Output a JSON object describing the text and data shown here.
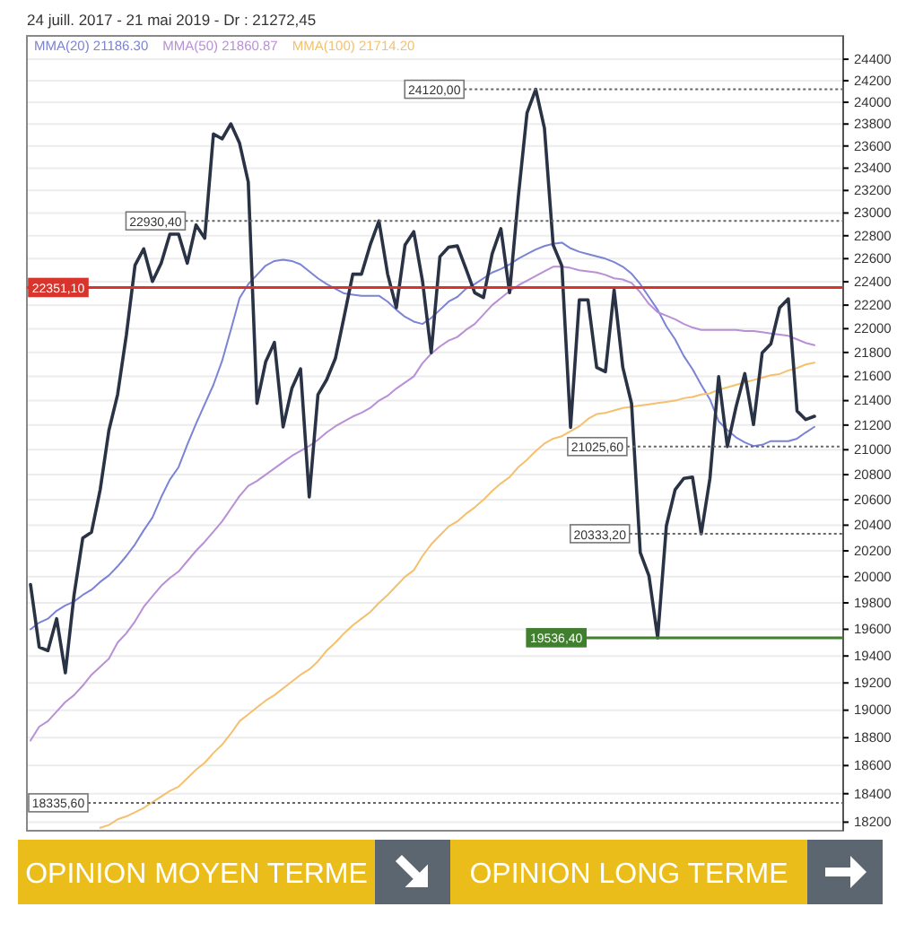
{
  "chart_data": {
    "type": "line",
    "title": "24 juill. 2017 - 21 mai 2019 - Dr : 21272,45",
    "categories": [
      null,
      null,
      null,
      null,
      null,
      null,
      null,
      null,
      null,
      null,
      null,
      null,
      null,
      null,
      null,
      null,
      null,
      null,
      null,
      null,
      null,
      null,
      null,
      null,
      null,
      null,
      null,
      null,
      null,
      null,
      null,
      null,
      null,
      null,
      null,
      null,
      null,
      null,
      null,
      null,
      null,
      null,
      null,
      null,
      null,
      null,
      null,
      null,
      null,
      null,
      null,
      null,
      null,
      null,
      null,
      null,
      null,
      null,
      null,
      null,
      null,
      null,
      null,
      null,
      null,
      null,
      null,
      null,
      null,
      null,
      null,
      null,
      null,
      null,
      null,
      null,
      null,
      null,
      null,
      null,
      null,
      null,
      null,
      null,
      null,
      null,
      null,
      null,
      null,
      null,
      null
    ],
    "ylim": [
      18140,
      24620
    ],
    "yticks": [
      18200,
      18400,
      18600,
      18800,
      19000,
      19200,
      19400,
      19600,
      19800,
      20000,
      20200,
      20400,
      20600,
      20800,
      21000,
      21200,
      21400,
      21600,
      21800,
      22000,
      22200,
      22400,
      22600,
      22800,
      23000,
      23200,
      23400,
      23600,
      23800,
      24000,
      24200,
      24400
    ],
    "log": "y",
    "grid": "y",
    "tick_labels": "y",
    "series": [
      {
        "color": "#2a3346",
        "values": [
          19940,
          19466,
          19440,
          19680,
          19275,
          19860,
          20300,
          20345,
          20680,
          21157,
          21450,
          21944,
          22543,
          22685,
          22403,
          22560,
          22814,
          22814,
          22560,
          22894,
          22778,
          23709,
          23665,
          23802,
          23626,
          23276,
          21377,
          21723,
          21884,
          21185,
          21500,
          21663,
          20623,
          21450,
          21573,
          21750,
          22101,
          22466,
          22466,
          22720,
          22930,
          22466,
          22178,
          22720,
          22836,
          22408,
          21798,
          22617,
          22700,
          22711,
          22510,
          22306,
          22265,
          22643,
          22862,
          22306,
          23143,
          23901,
          24120,
          23763,
          22720,
          22537,
          21181,
          22245,
          22245,
          21674,
          21639,
          22330,
          21674,
          21377,
          20187,
          20006,
          19536,
          20396,
          20680,
          20770,
          20780,
          20333,
          20770,
          21598,
          21026,
          21350,
          21624,
          21204,
          21798,
          21873,
          22178,
          22254,
          21315,
          21245,
          21272
        ]
      },
      {
        "name": "MMA(20) 21186.30",
        "color": "#7b83d6",
        "values": [
          19600,
          19650,
          19680,
          19740,
          19780,
          19810,
          19860,
          19900,
          19960,
          20010,
          20080,
          20160,
          20250,
          20360,
          20460,
          20620,
          20760,
          20860,
          21041,
          21210,
          21370,
          21530,
          21730,
          21990,
          22260,
          22380,
          22460,
          22540,
          22580,
          22590,
          22580,
          22550,
          22490,
          22430,
          22380,
          22340,
          22300,
          22290,
          22280,
          22280,
          22280,
          22230,
          22160,
          22100,
          22060,
          22040,
          22090,
          22160,
          22230,
          22270,
          22340,
          22380,
          22430,
          22480,
          22510,
          22550,
          22600,
          22640,
          22680,
          22710,
          22730,
          22740,
          22690,
          22660,
          22640,
          22620,
          22600,
          22570,
          22530,
          22470,
          22380,
          22270,
          22160,
          22020,
          21910,
          21770,
          21660,
          21530,
          21410,
          21230,
          21160,
          21100,
          21060,
          21030,
          21040,
          21070,
          21070,
          21070,
          21090,
          21140,
          21186
        ]
      },
      {
        "name": "MMA(50) 21860.87",
        "color": "#b98fd6",
        "values": [
          18780,
          18880,
          18920,
          18990,
          19060,
          19110,
          19180,
          19260,
          19320,
          19380,
          19500,
          19570,
          19660,
          19770,
          19850,
          19930,
          19990,
          20040,
          20120,
          20200,
          20270,
          20350,
          20430,
          20530,
          20630,
          20710,
          20750,
          20800,
          20850,
          20900,
          20950,
          20990,
          21030,
          21080,
          21140,
          21190,
          21230,
          21270,
          21300,
          21340,
          21400,
          21440,
          21500,
          21550,
          21600,
          21710,
          21790,
          21850,
          21900,
          21930,
          21990,
          22040,
          22120,
          22200,
          22260,
          22320,
          22370,
          22410,
          22450,
          22490,
          22530,
          22530,
          22520,
          22500,
          22490,
          22480,
          22460,
          22430,
          22420,
          22390,
          22310,
          22210,
          22140,
          22110,
          22080,
          22040,
          22010,
          21990,
          21990,
          21990,
          21990,
          21990,
          21980,
          21980,
          21970,
          21960,
          21950,
          21940,
          21910,
          21880,
          21861
        ]
      },
      {
        "name": "MMA(100) 21714.20",
        "color": "#f5c06e",
        "values": [
          null,
          null,
          null,
          null,
          null,
          null,
          null,
          null,
          18160,
          18180,
          18220,
          18240,
          18270,
          18300,
          18340,
          18380,
          18420,
          18450,
          18510,
          18570,
          18620,
          18690,
          18750,
          18830,
          18920,
          18970,
          19020,
          19070,
          19110,
          19160,
          19210,
          19260,
          19300,
          19360,
          19440,
          19500,
          19570,
          19630,
          19680,
          19730,
          19800,
          19860,
          19930,
          20000,
          20050,
          20160,
          20250,
          20320,
          20390,
          20430,
          20490,
          20540,
          20600,
          20670,
          20730,
          20780,
          20860,
          20920,
          20990,
          21050,
          21090,
          21110,
          21150,
          21190,
          21250,
          21290,
          21300,
          21320,
          21340,
          21350,
          21360,
          21370,
          21380,
          21390,
          21400,
          21420,
          21430,
          21450,
          21460,
          21490,
          21510,
          21530,
          21550,
          21570,
          21590,
          21610,
          21620,
          21650,
          21670,
          21700,
          21714
        ]
      }
    ],
    "ref_lines": [
      {
        "axis": "y",
        "value": 22351.1,
        "label": "22351,10",
        "color": "#d9342b",
        "line_style": "solid"
      },
      {
        "axis": "y",
        "value": 24120,
        "label": "24120,00",
        "color": "#666666",
        "line_style": "dotted"
      },
      {
        "axis": "y",
        "value": 22930.4,
        "label": "22930,40",
        "color": "#666666",
        "line_style": "dotted"
      },
      {
        "axis": "y",
        "value": 21025.6,
        "label": "21025,60",
        "color": "#666666",
        "line_style": "dotted"
      },
      {
        "axis": "y",
        "value": 20333.2,
        "label": "20333,20",
        "color": "#666666",
        "line_style": "dotted"
      },
      {
        "axis": "y",
        "value": 19536.4,
        "label": "19536,40",
        "color": "#3f7f2e",
        "line_style": "solid"
      },
      {
        "axis": "y",
        "value": 18335.6,
        "label": "18335,60",
        "color": "#666666",
        "line_style": "dotted"
      }
    ],
    "annotations": [
      "OPINION MOYEN TERME",
      "OPINION LONG TERME"
    ]
  }
}
